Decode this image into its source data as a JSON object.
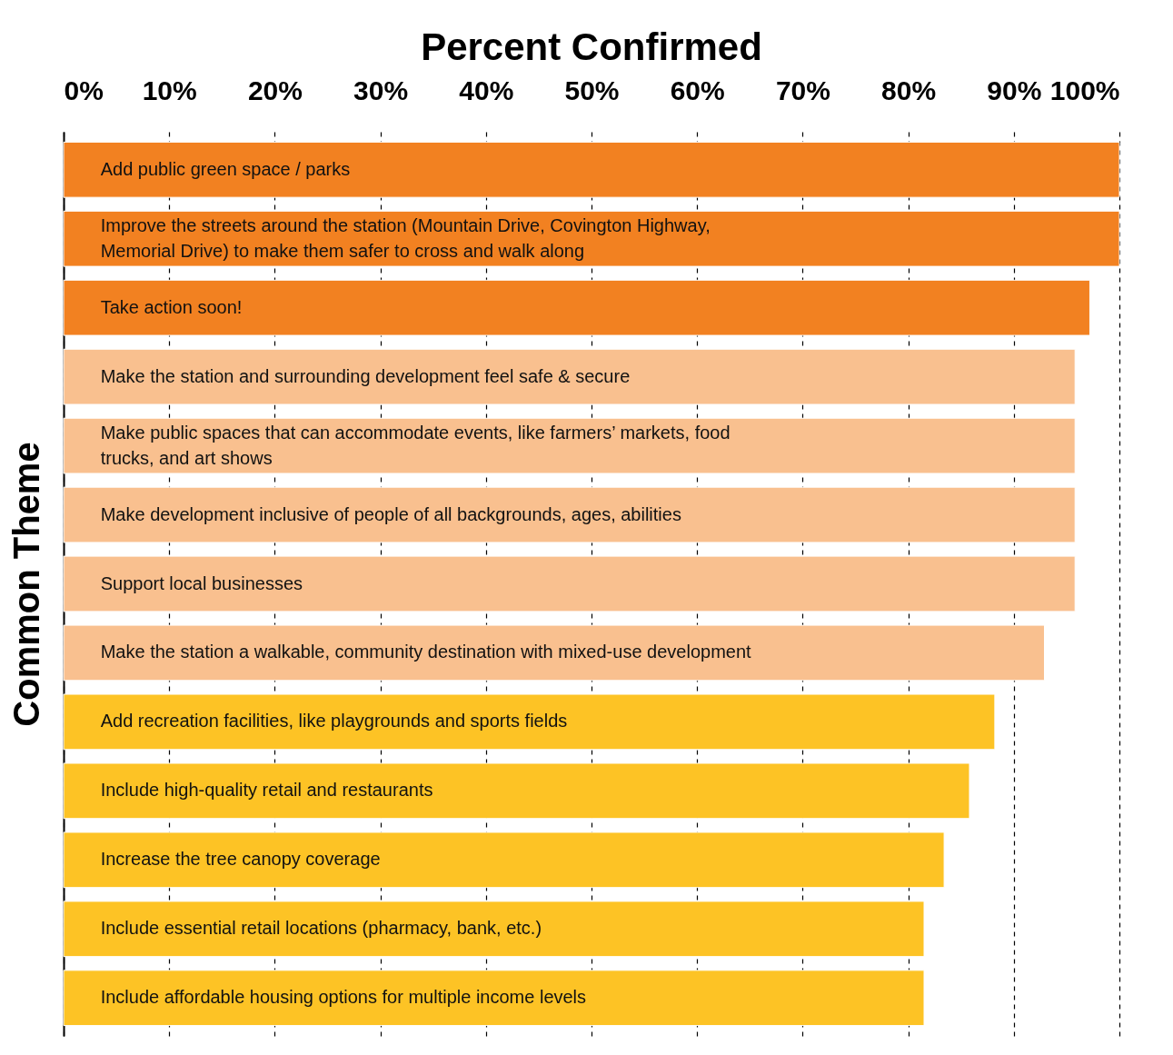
{
  "chart_data": {
    "type": "bar",
    "orientation": "horizontal",
    "title": "Percent Confirmed",
    "ylabel": "Common Theme",
    "categories": [
      "Add public green space / parks",
      "Improve the streets around the station (Mountain Drive, Covington Highway, Memorial Drive) to make them safer to cross and walk along",
      "Take action soon!",
      "Make the station and surrounding development feel safe & secure",
      "Make public spaces that can accommodate events, like farmers’ markets, food trucks, and art shows",
      "Make development inclusive of people of all backgrounds, ages, abilities",
      "Support local businesses",
      "Make the station a walkable, community destination with mixed-use development",
      "Add recreation facilities, like playgrounds and sports fields",
      "Include high-quality retail and restaurants",
      "Increase the tree canopy coverage",
      "Include essential retail locations (pharmacy, bank, etc.)",
      "Include affordable housing options for multiple income levels"
    ],
    "values": [
      100,
      100,
      97.2,
      95.8,
      95.8,
      95.8,
      95.8,
      92.9,
      88.2,
      85.8,
      83.4,
      81.5,
      81.5
    ],
    "colors": [
      "#f28121",
      "#f28121",
      "#f28121",
      "#f9c08f",
      "#f9c08f",
      "#f9c08f",
      "#f9c08f",
      "#f9c08f",
      "#fdc325",
      "#fdc325",
      "#fdc325",
      "#fdc325",
      "#fdc325"
    ],
    "xlim": [
      0,
      100
    ],
    "xticks": [
      {
        "value": 0,
        "label": "0%"
      },
      {
        "value": 10,
        "label": "10%"
      },
      {
        "value": 20,
        "label": "20%"
      },
      {
        "value": 30,
        "label": "30%"
      },
      {
        "value": 40,
        "label": "40%"
      },
      {
        "value": 50,
        "label": "50%"
      },
      {
        "value": 60,
        "label": "60%"
      },
      {
        "value": 70,
        "label": "70%"
      },
      {
        "value": 80,
        "label": "80%"
      },
      {
        "value": 90,
        "label": "90%"
      },
      {
        "value": 100,
        "label": "100%"
      }
    ],
    "grid": "x"
  }
}
